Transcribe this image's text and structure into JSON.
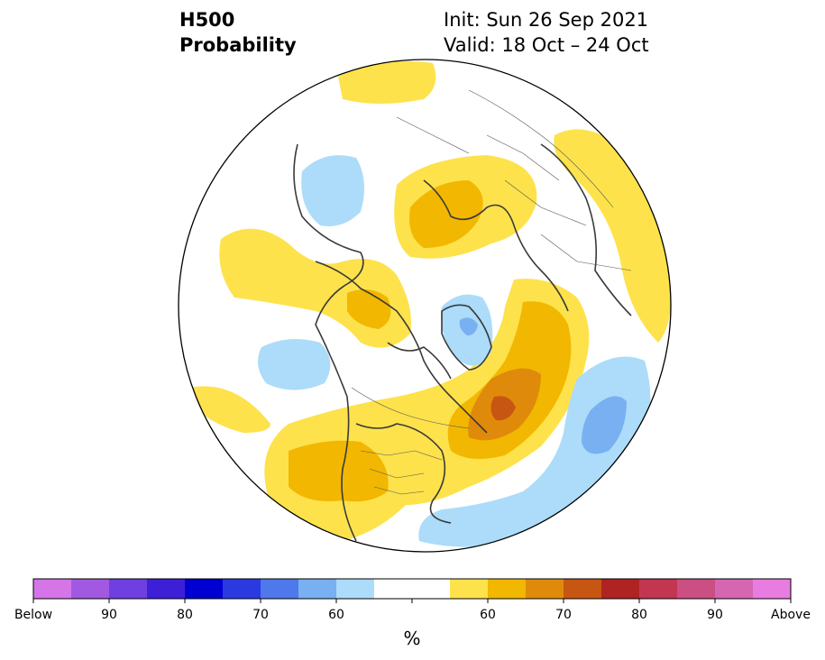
{
  "header": {
    "title_line1": "H500",
    "title_line2": "Probability",
    "init_label": "Init: Sun 26 Sep 2021",
    "valid_label": "Valid: 18 Oct – 24 Oct"
  },
  "colorbar": {
    "colors": [
      "#d575e8",
      "#a059e0",
      "#6f3fe0",
      "#3e1fd8",
      "#0000d0",
      "#2a3ae0",
      "#4f78ea",
      "#78b0f2",
      "#acdcf9",
      "#ffffff",
      "#ffffff",
      "#fde24c",
      "#f2b701",
      "#e08a0c",
      "#c75612",
      "#b02323",
      "#c23651",
      "#cb4f83",
      "#d566b1",
      "#e87ce0"
    ],
    "tick_labels": [
      "Below",
      "90",
      "80",
      "70",
      "60",
      "60",
      "70",
      "80",
      "90",
      "Above"
    ],
    "unit_label": "%"
  },
  "colors": {
    "below_light": "#acdcf9",
    "below_mid": "#78b0f2",
    "below_dark": "#4f78ea",
    "above_light": "#fde24c",
    "above_mid": "#f2b701",
    "above_dark": "#e08a0c",
    "above_deep": "#c75612",
    "coastline": "#3a3a3a",
    "border": "#555555"
  }
}
